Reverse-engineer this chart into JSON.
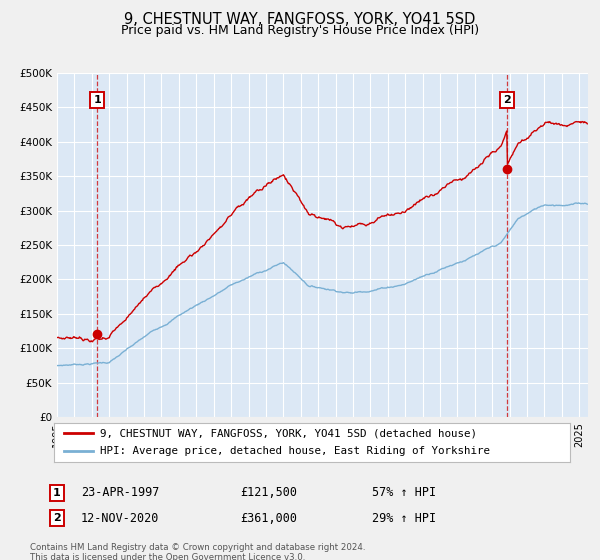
{
  "title": "9, CHESTNUT WAY, FANGFOSS, YORK, YO41 5SD",
  "subtitle": "Price paid vs. HM Land Registry's House Price Index (HPI)",
  "xlim": [
    1995.0,
    2025.5
  ],
  "ylim": [
    0,
    500000
  ],
  "yticks": [
    0,
    50000,
    100000,
    150000,
    200000,
    250000,
    300000,
    350000,
    400000,
    450000,
    500000
  ],
  "ytick_labels": [
    "£0",
    "£50K",
    "£100K",
    "£150K",
    "£200K",
    "£250K",
    "£300K",
    "£350K",
    "£400K",
    "£450K",
    "£500K"
  ],
  "xticks": [
    1995,
    1996,
    1997,
    1998,
    1999,
    2000,
    2001,
    2002,
    2003,
    2004,
    2005,
    2006,
    2007,
    2008,
    2009,
    2010,
    2011,
    2012,
    2013,
    2014,
    2015,
    2016,
    2017,
    2018,
    2019,
    2020,
    2021,
    2022,
    2023,
    2024,
    2025
  ],
  "outer_bg": "#f0f0f0",
  "plot_bg_color": "#dce8f5",
  "grid_color": "#ffffff",
  "red_line_color": "#cc0000",
  "blue_line_color": "#7ab0d4",
  "marker1_date": 1997.31,
  "marker1_value": 121500,
  "marker2_date": 2020.87,
  "marker2_value": 361000,
  "vline1_x": 1997.31,
  "vline2_x": 2020.87,
  "legend_line1": "9, CHESTNUT WAY, FANGFOSS, YORK, YO41 5SD (detached house)",
  "legend_line2": "HPI: Average price, detached house, East Riding of Yorkshire",
  "annotation1_date": "23-APR-1997",
  "annotation1_price": "£121,500",
  "annotation1_hpi": "57% ↑ HPI",
  "annotation2_date": "12-NOV-2020",
  "annotation2_price": "£361,000",
  "annotation2_hpi": "29% ↑ HPI",
  "footer1": "Contains HM Land Registry data © Crown copyright and database right 2024.",
  "footer2": "This data is licensed under the Open Government Licence v3.0."
}
